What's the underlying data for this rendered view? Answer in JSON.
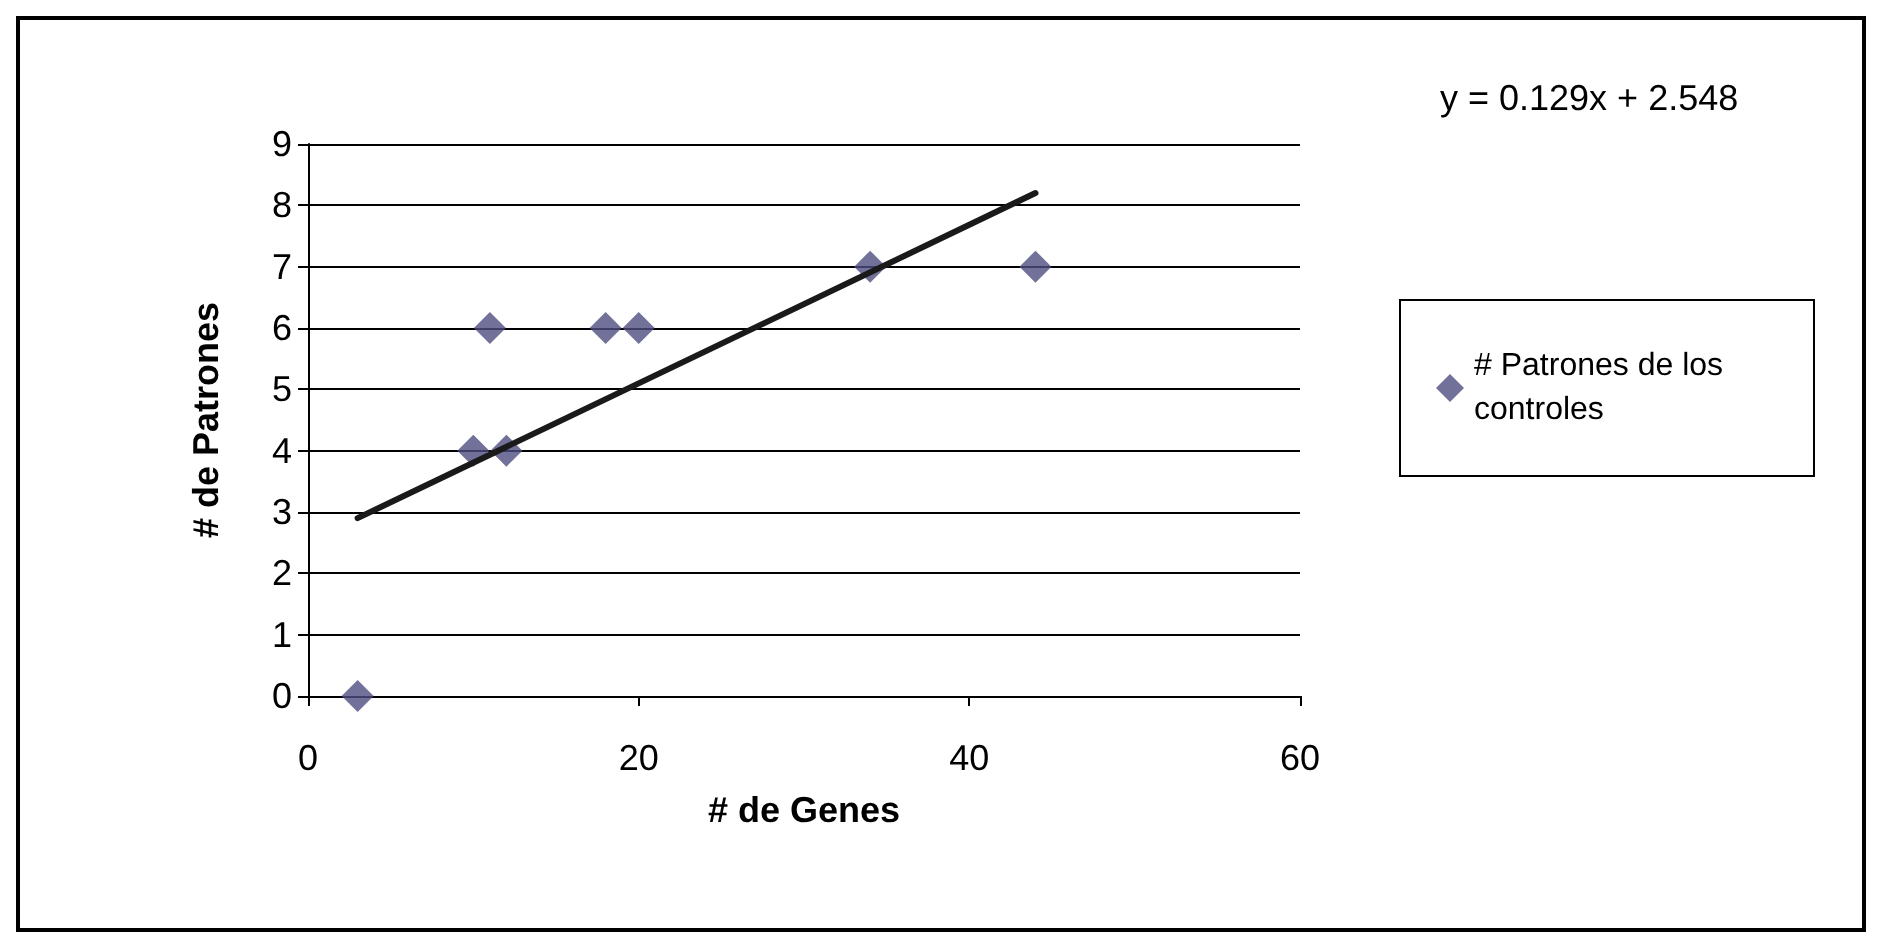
{
  "chart_data": {
    "type": "scatter",
    "xlabel": "# de Genes",
    "ylabel": "# de Patrones",
    "annotations": [
      "y = 0.129x + 2.548"
    ],
    "series": [
      {
        "name": "# Patrones de los controles",
        "color": "#4d4d80",
        "marker": "diamond",
        "x": [
          3,
          10,
          11,
          12,
          18,
          20,
          34,
          44
        ],
        "values": [
          0,
          4,
          6,
          4,
          6,
          6,
          7,
          7
        ]
      },
      {
        "type": "line",
        "color": "#1a1a1a",
        "marker": "none",
        "line_style": "solid",
        "x": [
          3,
          44
        ],
        "values": [
          2.9,
          8.2
        ]
      }
    ],
    "xlim": [
      0,
      60
    ],
    "xticks": [
      0,
      20,
      40,
      60
    ],
    "ylim": [
      0,
      9
    ],
    "yticks": [
      0,
      1,
      2,
      3,
      4,
      5,
      6,
      7,
      8,
      9
    ],
    "grid": "y",
    "legend": "right"
  }
}
